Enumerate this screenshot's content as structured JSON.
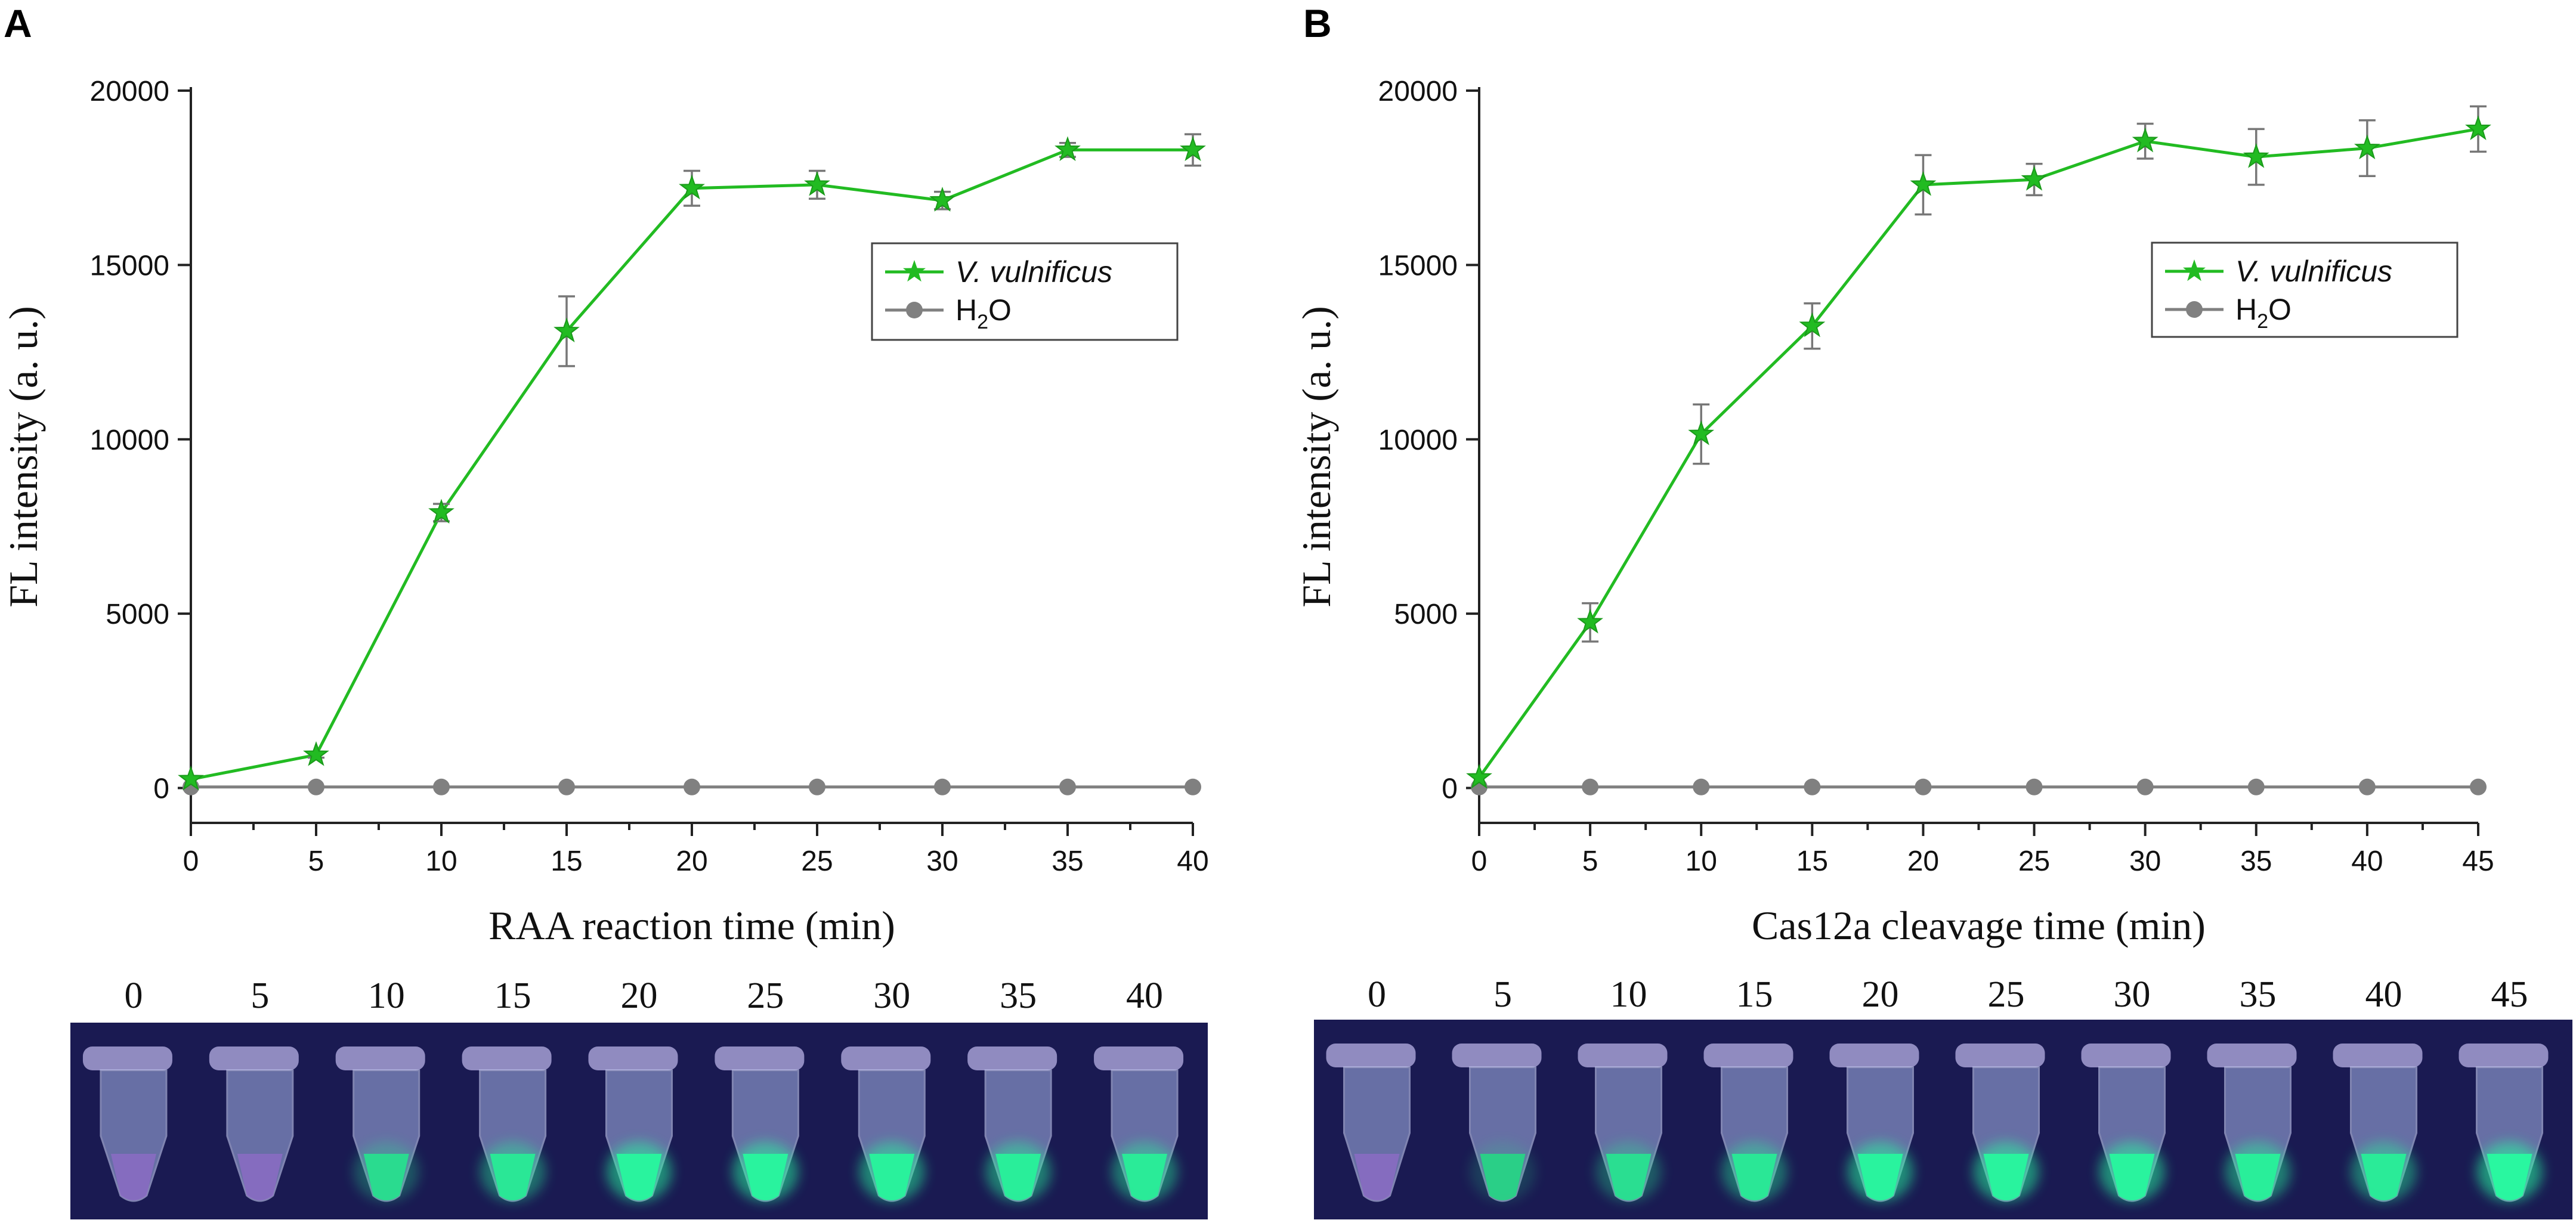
{
  "panels": [
    {
      "label": "A",
      "chart_data": {
        "type": "line",
        "title": "",
        "xlabel": "RAA reaction time (min)",
        "ylabel": "FL intensity (a. u.)",
        "x": [
          0,
          5,
          10,
          15,
          20,
          25,
          30,
          35,
          40
        ],
        "xticks": [
          "0",
          "5",
          "10",
          "15",
          "20",
          "25",
          "30",
          "35",
          "40"
        ],
        "xlim": [
          0,
          40
        ],
        "yticks": [
          "0",
          "5000",
          "10000",
          "15000",
          "20000"
        ],
        "ylim": [
          -1000,
          20000
        ],
        "series": [
          {
            "name": "V. vulnificus",
            "color": "#22bb22",
            "marker": "star",
            "values": [
              250,
              950,
              7900,
              13100,
              17200,
              17300,
              16850,
              18300,
              18300
            ],
            "errors": [
              0,
              80,
              250,
              1000,
              500,
              400,
              250,
              200,
              450
            ]
          },
          {
            "name": "H2O",
            "color": "#808080",
            "marker": "circle",
            "values": [
              30,
              30,
              30,
              30,
              30,
              30,
              30,
              30,
              30
            ],
            "errors": [
              0,
              0,
              0,
              0,
              0,
              0,
              0,
              0,
              0
            ]
          }
        ],
        "legend": {
          "position": "top-right",
          "label_1": "V. vulnificus",
          "label_2_main": "H",
          "label_2_sub": "2",
          "label_2_tail": "O"
        }
      },
      "tubes": {
        "labels": [
          "0",
          "5",
          "10",
          "15",
          "20",
          "25",
          "30",
          "35",
          "40"
        ],
        "intensity": [
          0.0,
          0.05,
          0.55,
          0.75,
          0.95,
          0.95,
          0.9,
          0.85,
          0.8
        ]
      }
    },
    {
      "label": "B",
      "chart_data": {
        "type": "line",
        "title": "",
        "xlabel": "Cas12a cleavage time (min)",
        "ylabel": "FL intensity (a. u.)",
        "x": [
          0,
          5,
          10,
          15,
          20,
          25,
          30,
          35,
          40,
          45
        ],
        "xticks": [
          "0",
          "5",
          "10",
          "15",
          "20",
          "25",
          "30",
          "35",
          "40",
          "45"
        ],
        "xlim": [
          0,
          45
        ],
        "yticks": [
          "0",
          "5000",
          "10000",
          "15000",
          "20000"
        ],
        "ylim": [
          -1000,
          20000
        ],
        "series": [
          {
            "name": "V. vulnificus",
            "color": "#22bb22",
            "marker": "star",
            "values": [
              300,
              4750,
              10150,
              13250,
              17300,
              17450,
              18550,
              18100,
              18350,
              18900
            ],
            "errors": [
              0,
              550,
              850,
              650,
              850,
              450,
              500,
              800,
              800,
              650
            ]
          },
          {
            "name": "H2O",
            "color": "#808080",
            "marker": "circle",
            "values": [
              30,
              30,
              30,
              30,
              30,
              30,
              30,
              30,
              30,
              30
            ],
            "errors": [
              0,
              0,
              0,
              0,
              0,
              0,
              0,
              0,
              0,
              0
            ]
          }
        ],
        "legend": {
          "position": "top-right",
          "label_1": "V. vulnificus",
          "label_2_main": "H",
          "label_2_sub": "2",
          "label_2_tail": "O"
        }
      },
      "tubes": {
        "labels": [
          "0",
          "5",
          "10",
          "15",
          "20",
          "25",
          "30",
          "35",
          "40",
          "45"
        ],
        "intensity": [
          0.0,
          0.35,
          0.6,
          0.75,
          0.95,
          0.95,
          0.95,
          0.85,
          0.8,
          1.0
        ]
      }
    }
  ]
}
